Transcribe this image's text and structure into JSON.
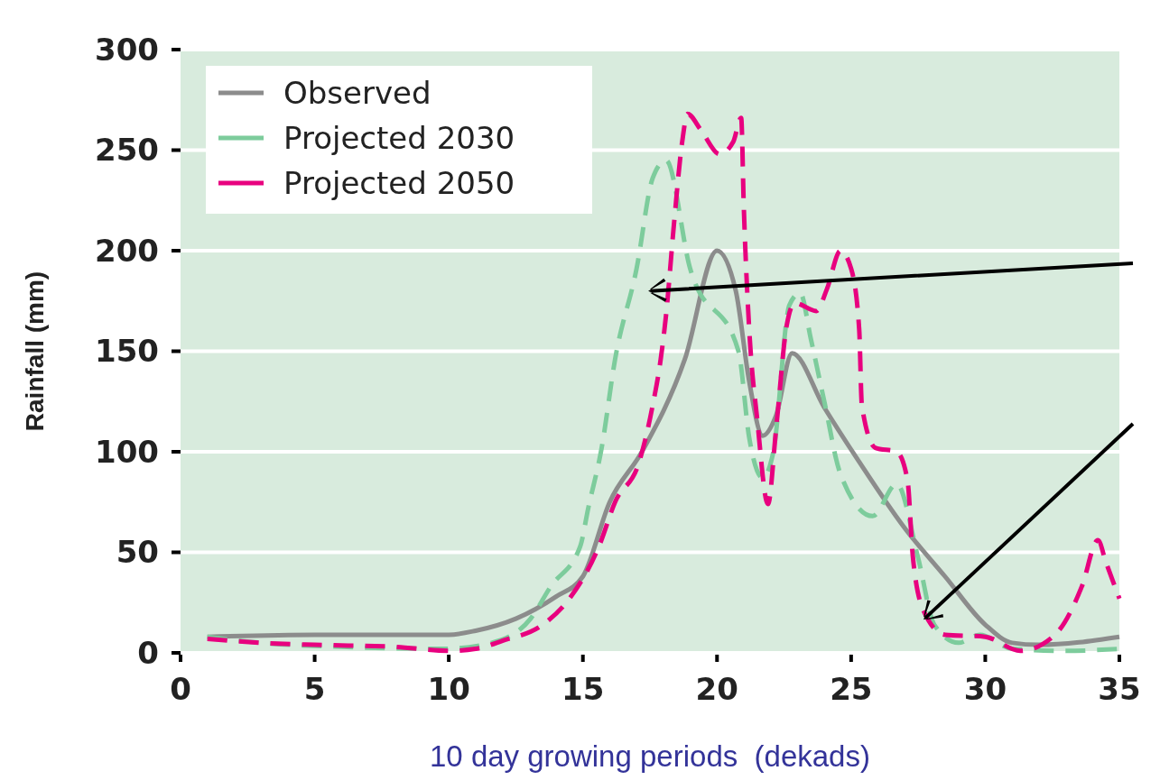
{
  "chart_data": {
    "type": "line",
    "ylabel": "Rainfall (mm)",
    "xlabel": "10 day growing periods  (dekads)",
    "xlim": [
      0,
      35
    ],
    "xticks": [
      0,
      5,
      10,
      15,
      20,
      25,
      30,
      35
    ],
    "ylim": [
      0,
      300
    ],
    "yticks": [
      0,
      50,
      100,
      150,
      200,
      250,
      300
    ],
    "grid": "y",
    "legend": "top left",
    "series": [
      {
        "name": "Observed",
        "color": "#8c8c8c",
        "line_style": "solid",
        "x": [
          1,
          5,
          10,
          11,
          12.5,
          14,
          15,
          16,
          17.2,
          18.8,
          20,
          20.7,
          21.2,
          21.7,
          22.2,
          22.8,
          24,
          25.3,
          27,
          28.5,
          30,
          31,
          32,
          35
        ],
        "values": [
          8,
          9,
          9,
          11,
          17,
          28,
          38,
          75,
          100,
          146,
          200,
          180,
          135,
          108,
          118,
          149,
          122,
          95,
          62,
          38,
          14,
          5,
          4,
          8
        ]
      },
      {
        "name": "Projected 2030",
        "color": "#7dcc9c",
        "line_style": "dashed",
        "x": [
          1,
          3,
          6,
          9.8,
          11.6,
          13.05,
          13.8,
          14.9,
          15.2,
          15.7,
          16.2,
          17,
          17.6,
          18.1,
          19,
          20.8,
          21.2,
          21.7,
          22.1,
          22.7,
          23.1,
          23.5,
          24,
          24.6,
          25.8,
          26.7,
          27.5,
          28.1,
          29,
          29.8,
          31,
          33,
          35
        ],
        "values": [
          8,
          5,
          3,
          2,
          5,
          17,
          33,
          53,
          72,
          102,
          146,
          191,
          236,
          245,
          191,
          150,
          107,
          87,
          100,
          173,
          179,
          156,
          125,
          89,
          68,
          84,
          47,
          14,
          5,
          9,
          2,
          1,
          2
        ]
      },
      {
        "name": "Projected 2050",
        "color": "#e8007f",
        "line_style": "dashed",
        "x": [
          1,
          3,
          5,
          8,
          10,
          11,
          12,
          13.5,
          14.5,
          15.6,
          16.2,
          17.1,
          17.6,
          17.9,
          18.1,
          18.4,
          18.7,
          18.9,
          19.4,
          20.1,
          20.6,
          20.9,
          21,
          21.2,
          21.5,
          21.9,
          22.2,
          22.6,
          22.9,
          23.7,
          24.1,
          24.6,
          25,
          25.3,
          25.4,
          25.9,
          26.7,
          27.1,
          27.3,
          27.7,
          28.5,
          30,
          31.3,
          32.6,
          33.6,
          34.2,
          34.5,
          35
        ],
        "values": [
          7,
          5,
          4,
          3,
          1,
          2,
          6,
          14,
          27,
          53,
          75,
          95,
          123,
          146,
          168,
          214,
          254,
          268,
          260,
          248,
          254,
          266,
          221,
          161,
          116,
          74,
          111,
          163,
          174,
          170,
          181,
          200,
          191,
          161,
          123,
          102,
          100,
          86,
          48,
          21,
          9,
          8,
          1,
          9,
          33,
          56,
          45,
          27
        ]
      }
    ]
  }
}
